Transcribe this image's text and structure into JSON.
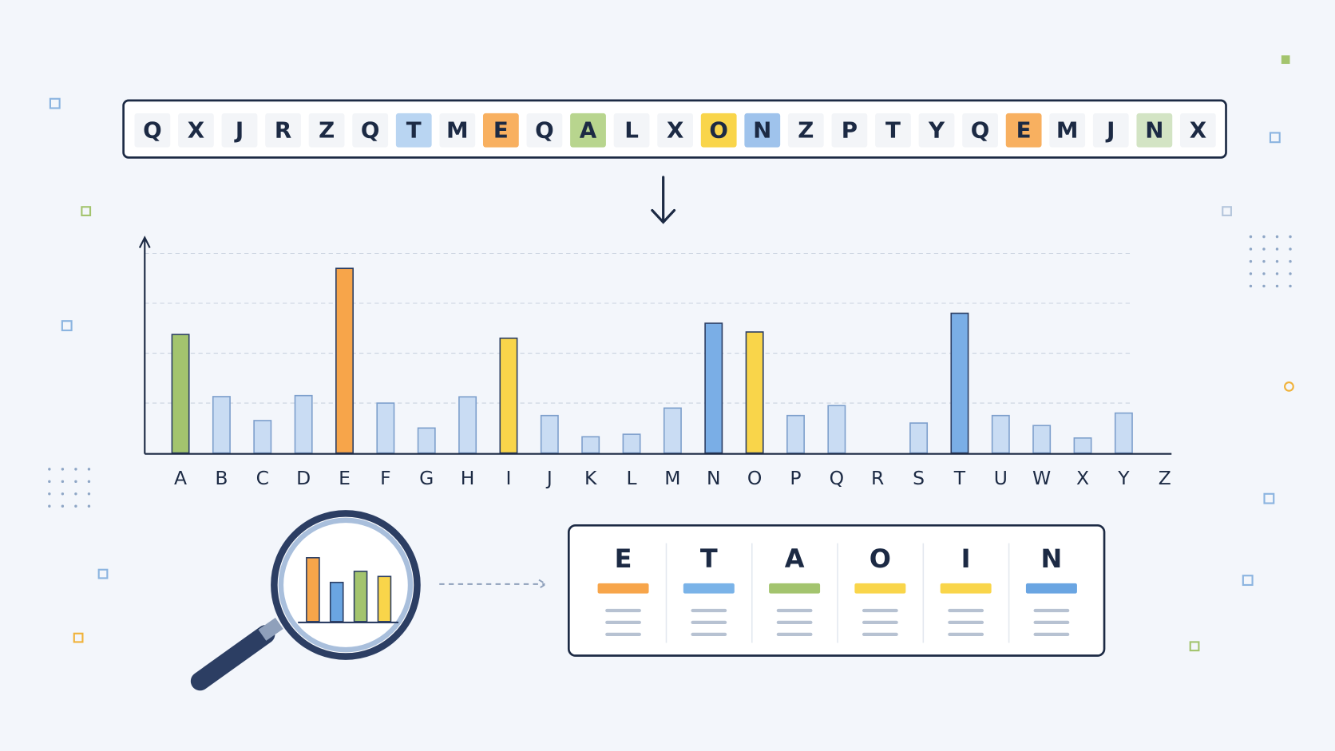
{
  "sequence": {
    "letters": [
      "Q",
      "X",
      "J",
      "R",
      "Z",
      "Q",
      "T",
      "M",
      "E",
      "Q",
      "A",
      "L",
      "X",
      "O",
      "N",
      "Z",
      "P",
      "T",
      "Y",
      "Q",
      "E",
      "M",
      "J",
      "N",
      "X"
    ],
    "highlights": [
      null,
      null,
      null,
      null,
      null,
      null,
      "#b9d5f2",
      null,
      "#f8b060",
      null,
      "#b8d58e",
      null,
      null,
      "#f9d54a",
      "#9fc3ec",
      null,
      null,
      null,
      null,
      null,
      "#f8b060",
      null,
      null,
      "#d3e4c4",
      null
    ]
  },
  "chart_data": {
    "type": "bar",
    "categories": [
      "A",
      "B",
      "C",
      "D",
      "E",
      "F",
      "G",
      "H",
      "I",
      "J",
      "K",
      "L",
      "M",
      "N",
      "O",
      "P",
      "Q",
      "R",
      "S",
      "T",
      "U",
      "W",
      "X",
      "Y",
      "Z"
    ],
    "values": [
      4.75,
      2.26,
      1.3,
      2.3,
      7.4,
      2.0,
      1.0,
      2.25,
      4.6,
      1.5,
      0.65,
      0.75,
      1.8,
      5.2,
      4.85,
      1.5,
      1.9,
      null,
      1.2,
      5.6,
      1.5,
      1.1,
      0.6,
      1.6,
      null
    ],
    "colors": [
      "#a3c46e",
      "#c9dcf3",
      "#c9dcf3",
      "#c9dcf3",
      "#f7a54a",
      "#c9dcf3",
      "#c9dcf3",
      "#c9dcf3",
      "#f9d54a",
      "#c9dcf3",
      "#c9dcf3",
      "#c9dcf3",
      "#c9dcf3",
      "#7aaee6",
      "#f9d54a",
      "#c9dcf3",
      "#c9dcf3",
      "#c9dcf3",
      "#c9dcf3",
      "#7aaee6",
      "#c9dcf3",
      "#c9dcf3",
      "#c9dcf3",
      "#c9dcf3",
      "#c9dcf3"
    ],
    "ylim": [
      0,
      8.6
    ],
    "yticks": [
      2,
      4,
      6,
      8
    ],
    "grid": true
  },
  "ranking": [
    {
      "letter": "E",
      "color": "#f7a54a"
    },
    {
      "letter": "T",
      "color": "#7ab3e8"
    },
    {
      "letter": "A",
      "color": "#a3c46e"
    },
    {
      "letter": "O",
      "color": "#f9d54a"
    },
    {
      "letter": "I",
      "color": "#f9d54a"
    },
    {
      "letter": "N",
      "color": "#6aa5e2"
    }
  ]
}
